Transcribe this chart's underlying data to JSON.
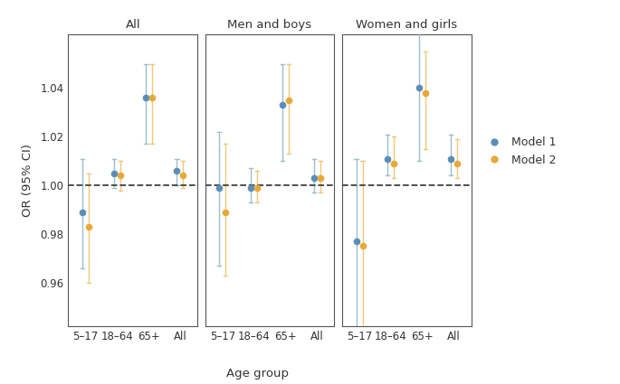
{
  "panels": [
    "All",
    "Men and boys",
    "Women and girls"
  ],
  "age_groups": [
    "5–17",
    "18–64",
    "65+",
    "All"
  ],
  "model1_color": "#5b8db8",
  "model2_color": "#e8a838",
  "model1_color_light": "#9dbdcf",
  "model2_color_light": "#f0c878",
  "reference_line": 1.0,
  "ylabel": "OR (95% CI)",
  "xlabel": "Age group",
  "ylim": [
    0.942,
    1.062
  ],
  "yticks": [
    0.96,
    0.98,
    1.0,
    1.02,
    1.04
  ],
  "data": {
    "All": {
      "model1": {
        "y": [
          0.989,
          1.005,
          1.036,
          1.006
        ],
        "ylo": [
          0.966,
          0.999,
          1.017,
          1.0
        ],
        "yhi": [
          1.011,
          1.011,
          1.05,
          1.011
        ]
      },
      "model2": {
        "y": [
          0.983,
          1.004,
          1.036,
          1.004
        ],
        "ylo": [
          0.96,
          0.998,
          1.017,
          0.999
        ],
        "yhi": [
          1.005,
          1.01,
          1.05,
          1.01
        ]
      }
    },
    "Men and boys": {
      "model1": {
        "y": [
          0.999,
          0.999,
          1.033,
          1.003
        ],
        "ylo": [
          0.967,
          0.993,
          1.01,
          0.997
        ],
        "yhi": [
          1.022,
          1.007,
          1.05,
          1.011
        ]
      },
      "model2": {
        "y": [
          0.989,
          0.999,
          1.035,
          1.003
        ],
        "ylo": [
          0.963,
          0.993,
          1.013,
          0.997
        ],
        "yhi": [
          1.017,
          1.006,
          1.05,
          1.01
        ]
      }
    },
    "Women and girls": {
      "model1": {
        "y": [
          0.977,
          1.011,
          1.04,
          1.011
        ],
        "ylo": [
          0.94,
          1.004,
          1.01,
          1.004
        ],
        "yhi": [
          1.011,
          1.021,
          1.065,
          1.021
        ]
      },
      "model2": {
        "y": [
          0.975,
          1.009,
          1.038,
          1.009
        ],
        "ylo": [
          0.93,
          1.003,
          1.015,
          1.003
        ],
        "yhi": [
          1.01,
          1.02,
          1.055,
          1.019
        ]
      }
    }
  }
}
